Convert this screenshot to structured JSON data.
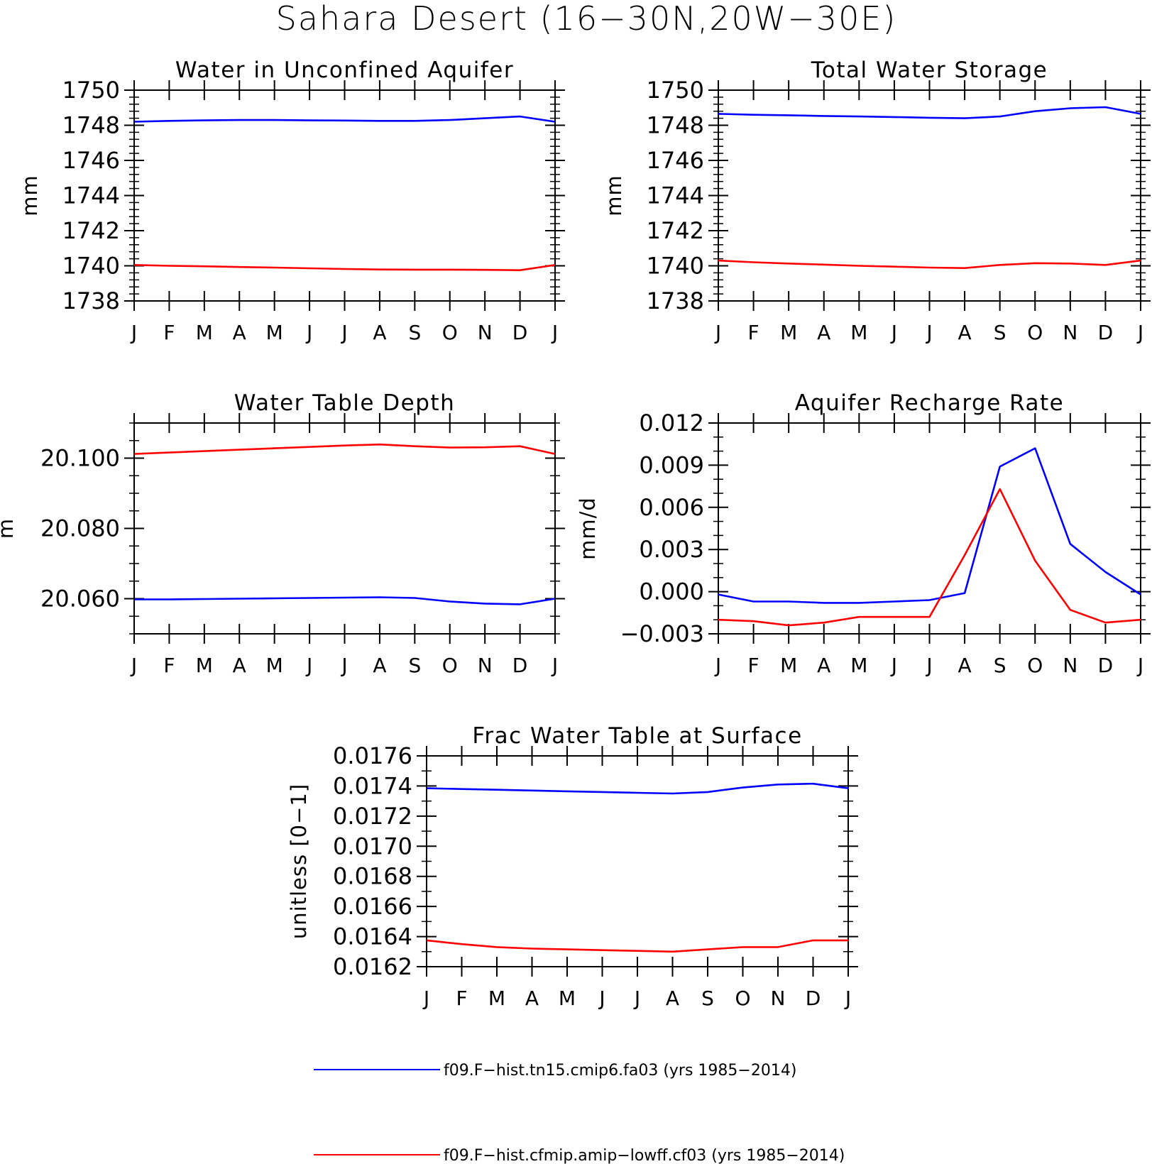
{
  "figure": {
    "title": "Sahara Desert (16−30N,20W−30E)"
  },
  "months": [
    "J",
    "F",
    "M",
    "A",
    "M",
    "J",
    "J",
    "A",
    "S",
    "O",
    "N",
    "D",
    "J"
  ],
  "legend": [
    {
      "label": "f09.F−hist.tn15.cmip6.fa03 (yrs 1985−2014)",
      "color": "#0000ff"
    },
    {
      "label": "f09.F−hist.cfmip.amip−lowff.cf03 (yrs 1985−2014)",
      "color": "#ff0000"
    }
  ],
  "chart_data": [
    {
      "type": "line",
      "title": "Water in Unconfined Aquifer",
      "ylabel": "mm",
      "ylim": [
        1738,
        1750
      ],
      "yticks": [
        "1738",
        "1740",
        "1742",
        "1744",
        "1746",
        "1748",
        "1750"
      ],
      "x": [
        "J",
        "F",
        "M",
        "A",
        "M",
        "J",
        "J",
        "A",
        "S",
        "O",
        "N",
        "D",
        "J"
      ],
      "series": [
        {
          "name": "f09.F−hist.tn15.cmip6.fa03 (yrs 1985−2014)",
          "color": "#0000ff",
          "values": [
            1748.2,
            1748.25,
            1748.28,
            1748.3,
            1748.3,
            1748.28,
            1748.27,
            1748.25,
            1748.25,
            1748.3,
            1748.4,
            1748.5,
            1748.2
          ]
        },
        {
          "name": "f09.F−hist.cfmip.amip−lowff.cf03 (yrs 1985−2014)",
          "color": "#ff0000",
          "values": [
            1740.05,
            1740.0,
            1739.97,
            1739.93,
            1739.9,
            1739.86,
            1739.82,
            1739.79,
            1739.78,
            1739.78,
            1739.77,
            1739.75,
            1740.05
          ]
        }
      ]
    },
    {
      "type": "line",
      "title": "Total Water Storage",
      "ylabel": "mm",
      "ylim": [
        1738,
        1750
      ],
      "yticks": [
        "1738",
        "1740",
        "1742",
        "1744",
        "1746",
        "1748",
        "1750"
      ],
      "x": [
        "J",
        "F",
        "M",
        "A",
        "M",
        "J",
        "J",
        "A",
        "S",
        "O",
        "N",
        "D",
        "J"
      ],
      "series": [
        {
          "name": "f09.F−hist.tn15.cmip6.fa03 (yrs 1985−2014)",
          "color": "#0000ff",
          "values": [
            1748.65,
            1748.6,
            1748.57,
            1748.53,
            1748.5,
            1748.47,
            1748.43,
            1748.4,
            1748.5,
            1748.8,
            1748.97,
            1749.03,
            1748.65
          ]
        },
        {
          "name": "f09.F−hist.cfmip.amip−lowff.cf03 (yrs 1985−2014)",
          "color": "#ff0000",
          "values": [
            1740.3,
            1740.2,
            1740.13,
            1740.07,
            1740.0,
            1739.95,
            1739.9,
            1739.87,
            1740.05,
            1740.15,
            1740.13,
            1740.05,
            1740.3
          ]
        }
      ]
    },
    {
      "type": "line",
      "title": "Water Table Depth",
      "ylabel": "m",
      "ylim": [
        20.05,
        20.11
      ],
      "yticks": [
        "20.060",
        "20.080",
        "20.100"
      ],
      "ytick_values": [
        20.06,
        20.08,
        20.1
      ],
      "x": [
        "J",
        "F",
        "M",
        "A",
        "M",
        "J",
        "J",
        "A",
        "S",
        "O",
        "N",
        "D",
        "J"
      ],
      "series": [
        {
          "name": "f09.F−hist.tn15.cmip6.fa03 (yrs 1985−2014)",
          "color": "#0000ff",
          "values": [
            20.0598,
            20.0598,
            20.0599,
            20.06,
            20.0601,
            20.0602,
            20.0603,
            20.0604,
            20.0602,
            20.0592,
            20.0586,
            20.0584,
            20.06
          ]
        },
        {
          "name": "f09.F−hist.cfmip.amip−lowff.cf03 (yrs 1985−2014)",
          "color": "#ff0000",
          "values": [
            20.1012,
            20.1016,
            20.102,
            20.1024,
            20.1028,
            20.1032,
            20.1036,
            20.1039,
            20.1034,
            20.103,
            20.1031,
            20.1034,
            20.1012
          ]
        }
      ]
    },
    {
      "type": "line",
      "title": "Aquifer Recharge Rate",
      "ylabel": "mm/d",
      "ylim": [
        -0.003,
        0.012
      ],
      "yticks": [
        "−0.003",
        "0.000",
        "0.003",
        "0.006",
        "0.009",
        "0.012"
      ],
      "ytick_values": [
        -0.003,
        0.0,
        0.003,
        0.006,
        0.009,
        0.012
      ],
      "x": [
        "J",
        "F",
        "M",
        "A",
        "M",
        "J",
        "J",
        "A",
        "S",
        "O",
        "N",
        "D",
        "J"
      ],
      "series": [
        {
          "name": "f09.F−hist.tn15.cmip6.fa03 (yrs 1985−2014)",
          "color": "#0000ff",
          "values": [
            -0.0002,
            -0.0007,
            -0.0007,
            -0.0008,
            -0.0008,
            -0.0007,
            -0.0006,
            -0.0001,
            0.0089,
            0.0102,
            0.0034,
            0.0014,
            -0.0002
          ]
        },
        {
          "name": "f09.F−hist.cfmip.amip−lowff.cf03 (yrs 1985−2014)",
          "color": "#ff0000",
          "values": [
            -0.002,
            -0.0021,
            -0.0024,
            -0.0022,
            -0.0018,
            -0.0018,
            -0.0018,
            0.0026,
            0.0073,
            0.0022,
            -0.0013,
            -0.0022,
            -0.002
          ]
        }
      ]
    },
    {
      "type": "line",
      "title": "Frac Water Table at Surface",
      "ylabel": "unitless [0−1]",
      "ylim": [
        0.0162,
        0.0176
      ],
      "yticks": [
        "0.0162",
        "0.0164",
        "0.0166",
        "0.0168",
        "0.0170",
        "0.0172",
        "0.0174",
        "0.0176"
      ],
      "x": [
        "J",
        "F",
        "M",
        "A",
        "M",
        "J",
        "J",
        "A",
        "S",
        "O",
        "N",
        "D",
        "J"
      ],
      "series": [
        {
          "name": "f09.F−hist.tn15.cmip6.fa03 (yrs 1985−2014)",
          "color": "#0000ff",
          "values": [
            0.017385,
            0.01738,
            0.017375,
            0.01737,
            0.017365,
            0.01736,
            0.017355,
            0.01735,
            0.01736,
            0.01739,
            0.01741,
            0.017415,
            0.017385
          ]
        },
        {
          "name": "f09.F−hist.cfmip.amip−lowff.cf03 (yrs 1985−2014)",
          "color": "#ff0000",
          "values": [
            0.016375,
            0.01635,
            0.01633,
            0.01632,
            0.016315,
            0.01631,
            0.016305,
            0.0163,
            0.016315,
            0.01633,
            0.01633,
            0.016375,
            0.016375
          ]
        }
      ]
    }
  ]
}
